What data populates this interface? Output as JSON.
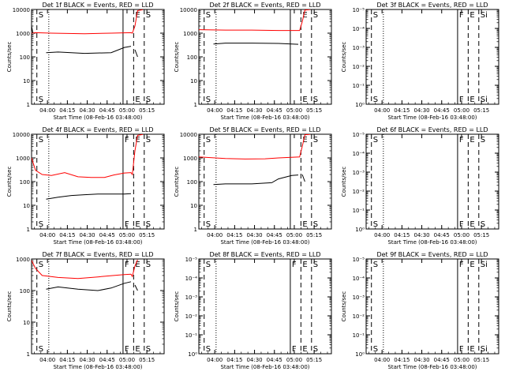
{
  "figure": {
    "xlabel": "Start Time (08-Feb-16 03:48:00)",
    "ylabel": "Counts/sec",
    "colors": {
      "events": "#000000",
      "lld": "#ff0000",
      "frame": "#000000",
      "background": "#ffffff"
    },
    "x_ticks": [
      "04:00",
      "04:15",
      "04:30",
      "04:45",
      "05:00",
      "05:15"
    ]
  },
  "chart_data": [
    {
      "type": "line",
      "title": "Det 1f BLACK = Events, RED = LLD",
      "yscale": "log",
      "yticks": [
        "1",
        "10",
        "100",
        "1000",
        "10000"
      ],
      "y_exp": [
        0,
        4
      ],
      "x_range_min": [
        0,
        100
      ],
      "x_tick_min": [
        12,
        27,
        42,
        57,
        72,
        87
      ],
      "markers": [
        {
          "x": 4,
          "style": "dashed",
          "label": "S"
        },
        {
          "x": 69,
          "style": "solid",
          "label": ""
        },
        {
          "x": 77,
          "style": "dashed",
          "label": "E"
        },
        {
          "x": 85,
          "style": "dashed",
          "label": "S"
        }
      ],
      "dotted": [
        13
      ],
      "series": [
        {
          "role": "lld",
          "points": [
            [
              0,
              1000
            ],
            [
              3,
              1050
            ],
            [
              15,
              1000
            ],
            [
              40,
              950
            ],
            [
              60,
              1000
            ],
            [
              75,
              1050
            ],
            [
              76,
              1000
            ],
            [
              78,
              2000
            ],
            [
              80,
              9000
            ],
            [
              84,
              9800
            ]
          ]
        },
        {
          "role": "events",
          "points": [
            [
              11,
              150
            ],
            [
              20,
              160
            ],
            [
              40,
              140
            ],
            [
              60,
              150
            ],
            [
              70,
              250
            ],
            [
              75,
              280
            ]
          ]
        },
        {
          "role": "events",
          "points": [
            [
              78,
              200
            ],
            [
              80,
              100
            ]
          ]
        },
        {
          "role": "events",
          "points": [
            [
              0,
              2000
            ],
            [
              1,
              1000
            ]
          ]
        }
      ]
    },
    {
      "type": "line",
      "title": "Det 2f BLACK = Events, RED = LLD",
      "yscale": "log",
      "yticks": [
        "1",
        "10",
        "100",
        "1000",
        "10000"
      ],
      "y_exp": [
        0,
        4
      ],
      "x_range_min": [
        0,
        100
      ],
      "x_tick_min": [
        12,
        27,
        42,
        57,
        72,
        87
      ],
      "markers": [
        {
          "x": 4,
          "style": "dashed",
          "label": "S"
        },
        {
          "x": 69,
          "style": "solid",
          "label": ""
        },
        {
          "x": 77,
          "style": "dashed",
          "label": "E"
        },
        {
          "x": 85,
          "style": "dashed",
          "label": "S"
        }
      ],
      "dotted": [
        13
      ],
      "series": [
        {
          "role": "lld",
          "points": [
            [
              0,
              1400
            ],
            [
              20,
              1350
            ],
            [
              40,
              1350
            ],
            [
              60,
              1300
            ],
            [
              76,
              1300
            ],
            [
              78,
              3000
            ],
            [
              80,
              9500
            ],
            [
              84,
              9900
            ]
          ]
        },
        {
          "role": "events",
          "points": [
            [
              11,
              350
            ],
            [
              20,
              380
            ],
            [
              40,
              380
            ],
            [
              60,
              370
            ],
            [
              75,
              340
            ]
          ]
        }
      ]
    },
    {
      "type": "line",
      "title": "Det 3f BLACK = Events, RED = LLD",
      "yscale": "log",
      "yticks": [
        "10⁰",
        "10⁻¹",
        "10⁻²",
        "10⁻³",
        "10⁻⁴",
        "10⁻⁵"
      ],
      "y_exp": [
        0,
        5
      ],
      "x_range_min": [
        0,
        100
      ],
      "x_tick_min": [
        12,
        27,
        42,
        57,
        72,
        87
      ],
      "markers": [
        {
          "x": 4,
          "style": "dashed",
          "label": "S"
        },
        {
          "x": 69,
          "style": "solid",
          "label": "F"
        },
        {
          "x": 77,
          "style": "dashed",
          "label": "E"
        },
        {
          "x": 85,
          "style": "dashed",
          "label": "Si"
        }
      ],
      "dotted": [
        13
      ],
      "series": []
    },
    {
      "type": "line",
      "title": "Det 4f BLACK = Events, RED = LLD",
      "yscale": "log",
      "yticks": [
        "1",
        "10",
        "100",
        "1000",
        "10000"
      ],
      "y_exp": [
        0,
        4
      ],
      "x_range_min": [
        0,
        100
      ],
      "x_tick_min": [
        12,
        27,
        42,
        57,
        72,
        87
      ],
      "markers": [
        {
          "x": 4,
          "style": "dashed",
          "label": "S"
        },
        {
          "x": 69,
          "style": "solid",
          "label": "F"
        },
        {
          "x": 77,
          "style": "dashed",
          "label": "E"
        },
        {
          "x": 85,
          "style": "dashed",
          "label": "S"
        }
      ],
      "dotted": [
        13
      ],
      "series": [
        {
          "role": "lld",
          "points": [
            [
              0,
              1000
            ],
            [
              3,
              300
            ],
            [
              8,
              200
            ],
            [
              15,
              180
            ],
            [
              25,
              240
            ],
            [
              35,
              160
            ],
            [
              45,
              150
            ],
            [
              55,
              150
            ],
            [
              62,
              190
            ],
            [
              70,
              230
            ],
            [
              75,
              240
            ],
            [
              76,
              200
            ],
            [
              78,
              2000
            ],
            [
              80,
              9000
            ],
            [
              84,
              9800
            ]
          ]
        },
        {
          "role": "events",
          "points": [
            [
              11,
              18
            ],
            [
              20,
              22
            ],
            [
              30,
              26
            ],
            [
              40,
              28
            ],
            [
              50,
              30
            ],
            [
              60,
              30
            ],
            [
              70,
              30
            ],
            [
              75,
              31
            ]
          ]
        }
      ]
    },
    {
      "type": "line",
      "title": "Det 5f BLACK = Events, RED = LLD",
      "yscale": "log",
      "yticks": [
        "1",
        "10",
        "100",
        "1000",
        "10000"
      ],
      "y_exp": [
        0,
        4
      ],
      "x_range_min": [
        0,
        100
      ],
      "x_tick_min": [
        12,
        27,
        42,
        57,
        72,
        87
      ],
      "markers": [
        {
          "x": 4,
          "style": "dashed",
          "label": "S"
        },
        {
          "x": 69,
          "style": "solid",
          "label": ""
        },
        {
          "x": 77,
          "style": "dashed",
          "label": "E"
        },
        {
          "x": 85,
          "style": "dashed",
          "label": "S"
        }
      ],
      "dotted": [
        13
      ],
      "series": [
        {
          "role": "lld",
          "points": [
            [
              0,
              1100
            ],
            [
              20,
              950
            ],
            [
              35,
              900
            ],
            [
              50,
              920
            ],
            [
              60,
              1000
            ],
            [
              76,
              1100
            ],
            [
              78,
              3000
            ],
            [
              80,
              9500
            ],
            [
              84,
              9900
            ]
          ]
        },
        {
          "role": "events",
          "points": [
            [
              11,
              75
            ],
            [
              20,
              80
            ],
            [
              40,
              80
            ],
            [
              55,
              90
            ],
            [
              60,
              130
            ],
            [
              70,
              180
            ],
            [
              75,
              190
            ]
          ]
        },
        {
          "role": "events",
          "points": [
            [
              78,
              200
            ],
            [
              80,
              100
            ]
          ]
        }
      ]
    },
    {
      "type": "line",
      "title": "Det 6f BLACK = Events, RED = LLD",
      "yscale": "log",
      "yticks": [
        "10⁰",
        "10⁻¹",
        "10⁻²",
        "10⁻³",
        "10⁻⁴",
        "10⁻⁵"
      ],
      "y_exp": [
        0,
        5
      ],
      "x_range_min": [
        0,
        100
      ],
      "x_tick_min": [
        12,
        27,
        42,
        57,
        72,
        87
      ],
      "markers": [
        {
          "x": 4,
          "style": "dashed",
          "label": "S"
        },
        {
          "x": 69,
          "style": "solid",
          "label": "F"
        },
        {
          "x": 77,
          "style": "dashed",
          "label": "E"
        },
        {
          "x": 85,
          "style": "dashed",
          "label": "S"
        }
      ],
      "dotted": [
        13
      ],
      "series": []
    },
    {
      "type": "line",
      "title": "Det 7f BLACK = Events, RED = LLD",
      "yscale": "log",
      "yticks": [
        "1",
        "10",
        "100",
        "1000"
      ],
      "y_exp": [
        0,
        3
      ],
      "x_range_min": [
        0,
        100
      ],
      "x_tick_min": [
        12,
        27,
        42,
        57,
        72,
        87
      ],
      "markers": [
        {
          "x": 4,
          "style": "dashed",
          "label": "S"
        },
        {
          "x": 69,
          "style": "solid",
          "label": "F"
        },
        {
          "x": 77,
          "style": "dashed",
          "label": "E"
        },
        {
          "x": 85,
          "style": "dashed",
          "label": "S"
        }
      ],
      "dotted": [
        13
      ],
      "series": [
        {
          "role": "lld",
          "points": [
            [
              0,
              900
            ],
            [
              3,
              500
            ],
            [
              8,
              300
            ],
            [
              20,
              260
            ],
            [
              35,
              240
            ],
            [
              50,
              270
            ],
            [
              62,
              300
            ],
            [
              70,
              320
            ],
            [
              75,
              330
            ],
            [
              76,
              280
            ],
            [
              78,
              600
            ],
            [
              80,
              950
            ]
          ]
        },
        {
          "role": "events",
          "points": [
            [
              11,
              110
            ],
            [
              20,
              130
            ],
            [
              35,
              110
            ],
            [
              50,
              100
            ],
            [
              60,
              120
            ],
            [
              70,
              170
            ],
            [
              75,
              190
            ]
          ]
        },
        {
          "role": "events",
          "points": [
            [
              78,
              150
            ],
            [
              80,
              100
            ]
          ]
        }
      ]
    },
    {
      "type": "line",
      "title": "Det 8f BLACK = Events, RED = LLD",
      "yscale": "log",
      "yticks": [
        "10⁰",
        "10⁻¹",
        "10⁻²",
        "10⁻³",
        "10⁻⁴",
        "10⁻⁵"
      ],
      "y_exp": [
        0,
        5
      ],
      "x_range_min": [
        0,
        100
      ],
      "x_tick_min": [
        12,
        27,
        42,
        57,
        72,
        87
      ],
      "markers": [
        {
          "x": 4,
          "style": "dashed",
          "label": "S"
        },
        {
          "x": 69,
          "style": "solid",
          "label": "F"
        },
        {
          "x": 77,
          "style": "dashed",
          "label": "E"
        },
        {
          "x": 85,
          "style": "dashed",
          "label": "S"
        }
      ],
      "dotted": [
        13
      ],
      "series": []
    },
    {
      "type": "line",
      "title": "Det 9f BLACK = Events, RED = LLD",
      "yscale": "log",
      "yticks": [
        "10⁰",
        "10⁻¹",
        "10⁻²",
        "10⁻³",
        "10⁻⁴",
        "10⁻⁵"
      ],
      "y_exp": [
        0,
        5
      ],
      "x_range_min": [
        0,
        100
      ],
      "x_tick_min": [
        12,
        27,
        42,
        57,
        72,
        87
      ],
      "markers": [
        {
          "x": 4,
          "style": "dashed",
          "label": "S"
        },
        {
          "x": 69,
          "style": "solid",
          "label": "F"
        },
        {
          "x": 77,
          "style": "dashed",
          "label": "E"
        },
        {
          "x": 85,
          "style": "dashed",
          "label": "Si"
        }
      ],
      "dotted": [
        13
      ],
      "series": []
    }
  ]
}
